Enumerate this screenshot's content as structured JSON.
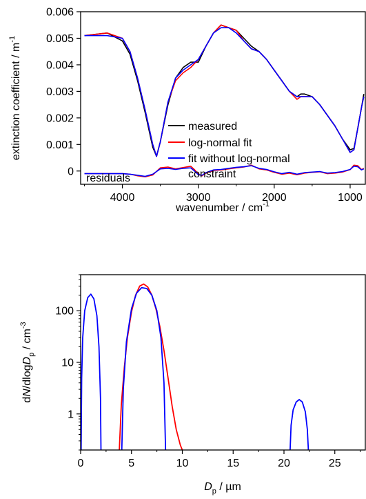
{
  "chart_data": [
    {
      "type": "line",
      "xlabel_text": "wavenumber / cm",
      "xlabel_sup": "-1",
      "ylabel_text": "extinction coefficient / m",
      "ylabel_sup": "-1",
      "xlim": [
        4550,
        800
      ],
      "ylim": [
        -0.0005,
        0.006
      ],
      "x_reversed": true,
      "x_ticks": [
        4000,
        3000,
        2000,
        1000
      ],
      "x_tick_labels": [
        "4000",
        "3000",
        "2000",
        "1000"
      ],
      "y_ticks": [
        0,
        0.001,
        0.002,
        0.003,
        0.004,
        0.005,
        0.006
      ],
      "y_tick_labels": [
        "0",
        "0.001",
        "0.002",
        "0.003",
        "0.004",
        "0.005",
        "0.006"
      ],
      "annotation": "residuals",
      "legend": {
        "position": "center-right",
        "entries": [
          {
            "label": "measured",
            "color": "#000000"
          },
          {
            "label": "log-normal fit",
            "color": "#ff0000"
          },
          {
            "label": "fit without log-normal",
            "color": "#0000ff"
          },
          {
            "label": "constraint",
            "color": ""
          }
        ]
      },
      "series": [
        {
          "name": "measured",
          "color": "#000000",
          "x": [
            4500,
            4200,
            4000,
            3900,
            3800,
            3700,
            3600,
            3550,
            3500,
            3400,
            3300,
            3200,
            3100,
            3000,
            2900,
            2800,
            2700,
            2600,
            2500,
            2400,
            2300,
            2200,
            2100,
            2000,
            1900,
            1800,
            1700,
            1650,
            1600,
            1500,
            1400,
            1300,
            1200,
            1100,
            1000,
            950,
            900,
            850,
            820
          ],
          "y": [
            0.0051,
            0.0052,
            0.0049,
            0.0044,
            0.0034,
            0.0022,
            0.0009,
            0.00055,
            0.0011,
            0.0025,
            0.0035,
            0.0039,
            0.0041,
            0.0041,
            0.0047,
            0.0052,
            0.0055,
            0.0054,
            0.0053,
            0.005,
            0.0047,
            0.0045,
            0.0042,
            0.0038,
            0.0034,
            0.003,
            0.0028,
            0.0029,
            0.0029,
            0.0028,
            0.0025,
            0.0021,
            0.0017,
            0.0012,
            0.0008,
            0.00085,
            0.0016,
            0.0024,
            0.0029
          ]
        },
        {
          "name": "log-normal fit",
          "color": "#ff0000",
          "x": [
            4500,
            4200,
            4000,
            3900,
            3800,
            3700,
            3600,
            3550,
            3500,
            3400,
            3300,
            3200,
            3100,
            3000,
            2900,
            2800,
            2700,
            2600,
            2500,
            2400,
            2300,
            2200,
            2100,
            2000,
            1900,
            1800,
            1700,
            1650,
            1600,
            1500,
            1400,
            1300,
            1200,
            1100,
            1000,
            950,
            900,
            850,
            820
          ],
          "y": [
            0.0051,
            0.0052,
            0.005,
            0.0045,
            0.0035,
            0.0023,
            0.001,
            0.00055,
            0.0011,
            0.0026,
            0.0034,
            0.0037,
            0.0039,
            0.0042,
            0.0047,
            0.0052,
            0.0055,
            0.0054,
            0.0053,
            0.0049,
            0.0046,
            0.0045,
            0.0042,
            0.0038,
            0.0034,
            0.003,
            0.0027,
            0.0028,
            0.0028,
            0.0028,
            0.0025,
            0.0021,
            0.0017,
            0.0012,
            0.0007,
            0.0008,
            0.0016,
            0.0024,
            0.0028
          ]
        },
        {
          "name": "fit without log-normal constraint",
          "color": "#0000ff",
          "x": [
            4500,
            4200,
            4000,
            3900,
            3800,
            3700,
            3600,
            3550,
            3500,
            3400,
            3300,
            3200,
            3100,
            3000,
            2900,
            2800,
            2700,
            2600,
            2500,
            2400,
            2300,
            2200,
            2100,
            2000,
            1900,
            1800,
            1700,
            1650,
            1600,
            1500,
            1400,
            1300,
            1200,
            1100,
            1000,
            950,
            900,
            850,
            820
          ],
          "y": [
            0.0051,
            0.0051,
            0.005,
            0.0045,
            0.0035,
            0.0023,
            0.001,
            0.00055,
            0.0011,
            0.0026,
            0.0035,
            0.0038,
            0.004,
            0.0042,
            0.0047,
            0.0052,
            0.0054,
            0.0054,
            0.0052,
            0.0049,
            0.0046,
            0.0045,
            0.0042,
            0.0038,
            0.0034,
            0.003,
            0.0028,
            0.0028,
            0.0028,
            0.0028,
            0.0025,
            0.0021,
            0.0017,
            0.0012,
            0.0007,
            0.0008,
            0.0016,
            0.0024,
            0.0028
          ]
        },
        {
          "name": "residuals (log-normal fit)",
          "color": "#ff0000",
          "x": [
            4500,
            4300,
            4100,
            4000,
            3900,
            3800,
            3700,
            3600,
            3500,
            3400,
            3300,
            3200,
            3100,
            3050,
            3000,
            2950,
            2900,
            2800,
            2700,
            2600,
            2500,
            2400,
            2300,
            2200,
            2100,
            2000,
            1900,
            1800,
            1700,
            1600,
            1500,
            1400,
            1300,
            1200,
            1100,
            1000,
            950,
            900,
            850,
            820
          ],
          "y": [
            -0.0001,
            -0.0001,
            -0.0001,
            -0.0001,
            -0.00012,
            -0.00018,
            -0.00022,
            -0.00015,
            0.00012,
            0.00015,
            8e-05,
            0.00013,
            0.00018,
            5e-05,
            -0.00012,
            -0.00018,
            -8e-05,
            2e-05,
            4e-05,
            8e-05,
            0.00012,
            0.00015,
            0.00022,
            8e-05,
            4e-05,
            -5e-05,
            -0.00012,
            -8e-05,
            -0.00014,
            -8e-05,
            -5e-05,
            -3e-05,
            -0.0001,
            -8e-05,
            -4e-05,
            5e-05,
            0.00022,
            0.0002,
            5e-05,
            0.0001
          ]
        },
        {
          "name": "residuals (fit without constraint)",
          "color": "#0000ff",
          "x": [
            4500,
            4300,
            4100,
            4000,
            3900,
            3800,
            3700,
            3600,
            3500,
            3400,
            3300,
            3200,
            3100,
            3050,
            3000,
            2950,
            2900,
            2800,
            2700,
            2600,
            2500,
            2400,
            2300,
            2200,
            2100,
            2000,
            1900,
            1800,
            1700,
            1600,
            1500,
            1400,
            1300,
            1200,
            1100,
            1000,
            950,
            900,
            850,
            820
          ],
          "y": [
            -0.0001,
            -0.0001,
            -0.0001,
            -0.0001,
            -0.00012,
            -0.00016,
            -0.0002,
            -0.00012,
            8e-05,
            0.0001,
            6e-05,
            0.0001,
            0.00012,
            0.0,
            -0.00014,
            -0.00016,
            -6e-05,
            4e-05,
            6e-05,
            0.0001,
            0.00014,
            0.00016,
            0.0002,
            0.0001,
            6e-05,
            -3e-05,
            -0.0001,
            -5e-05,
            -0.00012,
            -6e-05,
            -4e-05,
            -2e-05,
            -8e-05,
            -6e-05,
            -2e-05,
            6e-05,
            0.00018,
            0.00016,
            4e-05,
            8e-05
          ]
        }
      ]
    },
    {
      "type": "line",
      "xlabel_italic": "D",
      "xlabel_sub": "p",
      "xlabel_unit": " / µm",
      "ylabel_parts": [
        "d",
        "N",
        "/dlog",
        "D",
        "p",
        " / cm",
        "-3"
      ],
      "xlim": [
        0,
        28
      ],
      "ylim": [
        0.2,
        500
      ],
      "y_scale": "log",
      "x_ticks": [
        0,
        5,
        10,
        15,
        20,
        25
      ],
      "x_tick_labels": [
        "0",
        "5",
        "10",
        "15",
        "20",
        "25"
      ],
      "y_ticks": [
        1,
        10,
        100
      ],
      "y_tick_labels": [
        "1",
        "10",
        "100"
      ],
      "series": [
        {
          "name": "log-normal fit",
          "color": "#ff0000",
          "segments": [
            {
              "x": [
                3.8,
                4.0,
                4.3,
                4.6,
                5.0,
                5.4,
                5.8,
                6.2,
                6.6,
                7.0,
                7.4,
                7.8,
                8.2,
                8.6,
                9.0,
                9.4,
                9.8,
                10.0
              ],
              "y": [
                0.2,
                1.5,
                8,
                30,
                95,
                200,
                300,
                330,
                290,
                200,
                110,
                48,
                17,
                5,
                1.4,
                0.5,
                0.25,
                0.2
              ]
            }
          ]
        },
        {
          "name": "fit without log-normal constraint",
          "color": "#0000ff",
          "segments": [
            {
              "x": [
                0.05,
                0.1,
                0.2,
                0.4,
                0.7,
                1.0,
                1.3,
                1.6,
                1.8,
                1.95,
                2.0
              ],
              "y": [
                0.2,
                5,
                30,
                100,
                180,
                210,
                170,
                80,
                20,
                2,
                0.2
              ]
            },
            {
              "x": [
                4.05,
                4.2,
                4.5,
                5.0,
                5.5,
                6.0,
                6.5,
                7.0,
                7.5,
                7.9,
                8.2,
                8.35
              ],
              "y": [
                0.2,
                3,
                25,
                110,
                220,
                280,
                270,
                200,
                100,
                30,
                4,
                0.2
              ]
            },
            {
              "x": [
                20.6,
                20.7,
                20.9,
                21.2,
                21.5,
                21.8,
                22.1,
                22.3,
                22.4
              ],
              "y": [
                0.2,
                0.6,
                1.2,
                1.7,
                1.9,
                1.7,
                1.1,
                0.5,
                0.2
              ]
            }
          ]
        }
      ]
    }
  ]
}
